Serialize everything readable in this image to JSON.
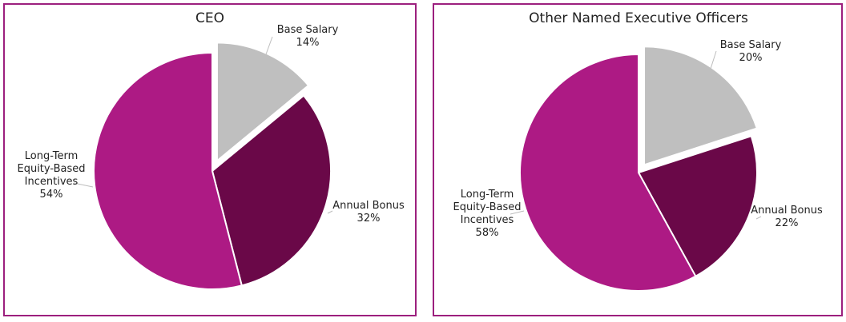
{
  "chart_data": [
    {
      "type": "pie",
      "title": "CEO",
      "series": [
        {
          "name": "Base Salary",
          "label_lines": [
            "Base Salary",
            "14%"
          ],
          "value": 14,
          "color": "#bfbfbf",
          "exploded": true
        },
        {
          "name": "Annual Bonus",
          "label_lines": [
            "Annual Bonus",
            "32%"
          ],
          "value": 32,
          "color": "#6a0848",
          "exploded": false
        },
        {
          "name": "Long-Term Equity-Based Incentives",
          "label_lines": [
            "Long-Term",
            "Equity-Based",
            "Incentives",
            "54%"
          ],
          "value": 54,
          "color": "#ad1a84",
          "exploded": false
        }
      ]
    },
    {
      "type": "pie",
      "title": "Other Named Executive Officers",
      "series": [
        {
          "name": "Base Salary",
          "label_lines": [
            "Base Salary",
            "20%"
          ],
          "value": 20,
          "color": "#bfbfbf",
          "exploded": true
        },
        {
          "name": "Annual Bonus",
          "label_lines": [
            "Annual Bonus",
            "22%"
          ],
          "value": 22,
          "color": "#6a0848",
          "exploded": false
        },
        {
          "name": "Long-Term Equity-Based Incentives",
          "label_lines": [
            "Long-Term",
            "Equity-Based",
            "Incentives",
            "58%"
          ],
          "value": 58,
          "color": "#ad1a84",
          "exploded": false
        }
      ]
    }
  ]
}
